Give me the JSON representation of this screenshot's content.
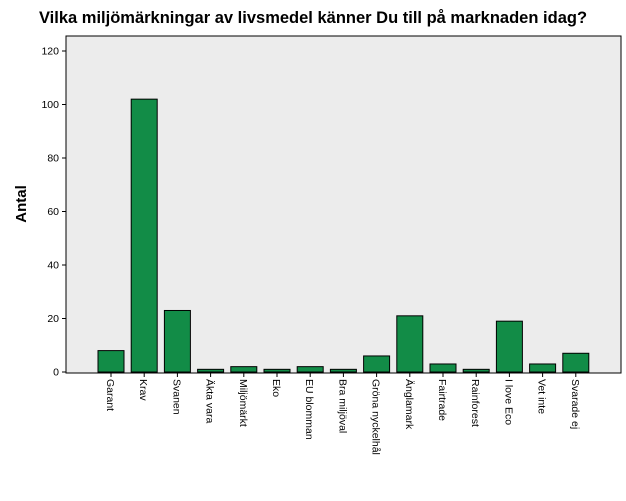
{
  "chart_data": {
    "type": "bar",
    "title": "Vilka miljömärkningar av livsmedel känner Du till på marknaden idag?",
    "xlabel": "",
    "ylabel": "Antal",
    "ylim": [
      0,
      120
    ],
    "yticks": [
      0,
      20,
      40,
      60,
      80,
      100,
      120
    ],
    "grid": false,
    "categories": [
      "Garant",
      "Krav",
      "Svanen",
      "Äkta vara",
      "Miljömärkt",
      "Eko",
      "EU blomman",
      "Bra miljöval",
      "Gröna nyckelhål",
      "Änglamark",
      "Fairtrade",
      "Rainforest",
      "I love Eco",
      "Vet inte",
      "Svarade ej"
    ],
    "values": [
      8,
      102,
      23,
      1,
      2,
      1,
      2,
      1,
      6,
      21,
      3,
      1,
      19,
      3,
      7
    ],
    "colors": {
      "bar_fill": "#128c47",
      "bar_stroke": "#000000",
      "plot_background": "#ececec",
      "page_background": "#ffffff"
    }
  }
}
